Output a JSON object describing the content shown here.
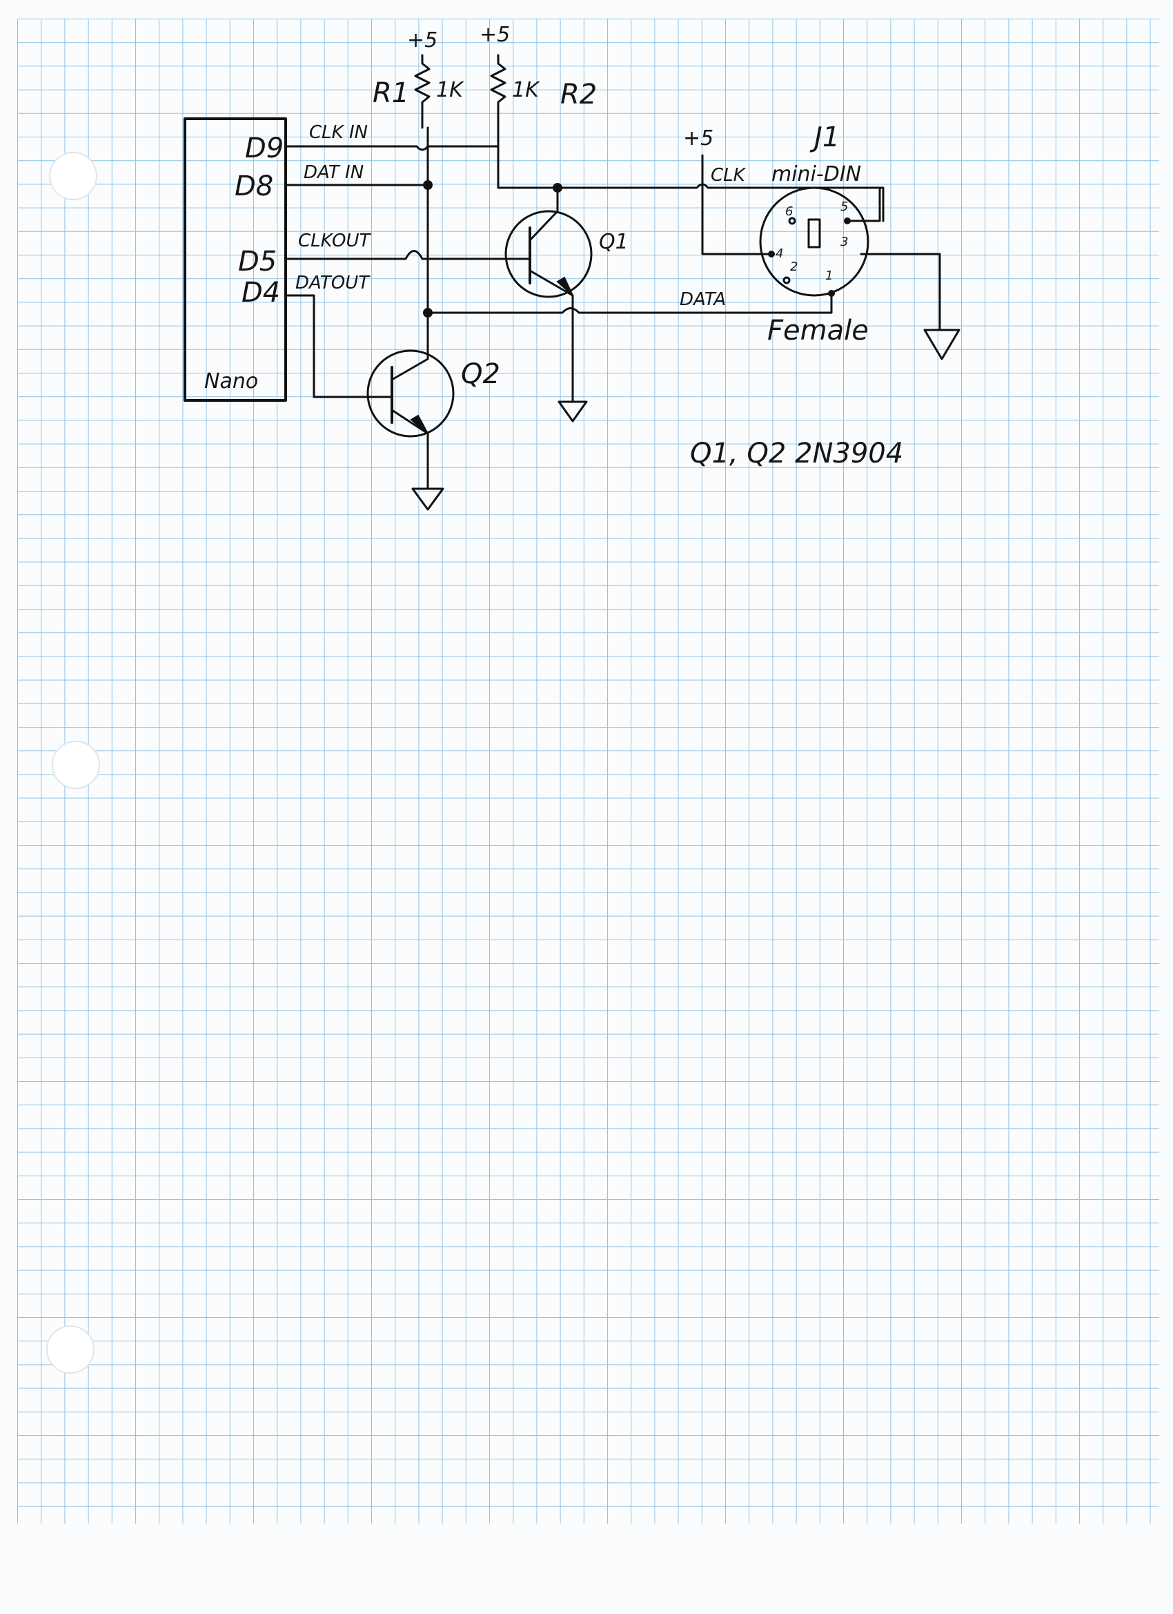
{
  "power": {
    "plus5_r1": "+5",
    "plus5_r2": "+5",
    "plus5_j1": "+5"
  },
  "resistors": {
    "r1": {
      "name": "R1",
      "value": "1K"
    },
    "r2": {
      "name": "R2",
      "value": "1K"
    }
  },
  "nano": {
    "label": "Nano",
    "pins": [
      "D9",
      "D8",
      "D5",
      "D4"
    ]
  },
  "signals": {
    "clk_in": "CLK IN",
    "dat_in": "DAT IN",
    "clk_out": "CLKOUT",
    "dat_out": "DATOUT",
    "clk": "CLK",
    "data": "DATA"
  },
  "transistors": {
    "q1": "Q1",
    "q2": "Q2"
  },
  "connector": {
    "ref": "J1",
    "type": "mini-DIN",
    "gender": "Female",
    "pins": [
      "1",
      "2",
      "3",
      "4",
      "5",
      "6"
    ]
  },
  "parts_note": "Q1, Q2  2N3904"
}
